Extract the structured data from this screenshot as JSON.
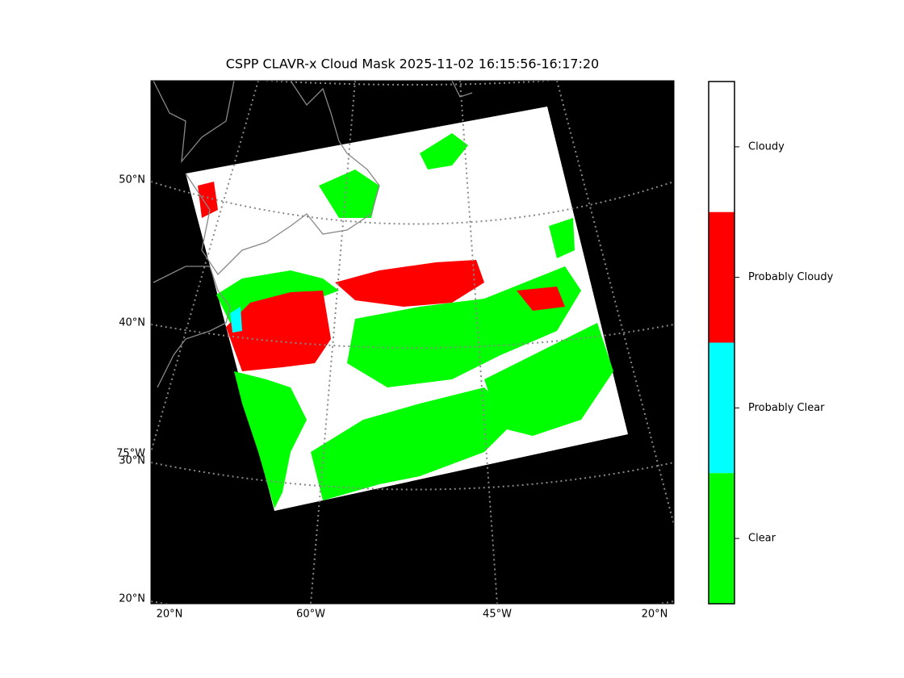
{
  "title": "CSPP CLAVR-x Cloud Mask 2025-11-02 16:15:56-16:17:20",
  "map": {
    "lat_labels": [
      "50°N",
      "40°N",
      "30°N",
      "20°N",
      "75°W"
    ],
    "lon_labels": [
      "20°N",
      "60°W",
      "45°W",
      "20°N"
    ]
  },
  "colorbar": {
    "labels": [
      "Cloudy",
      "Probably Cloudy",
      "Probably Clear",
      "Clear"
    ],
    "colors": [
      "#ffffff",
      "#ff0000",
      "#00ffff",
      "#00ff00"
    ]
  }
}
